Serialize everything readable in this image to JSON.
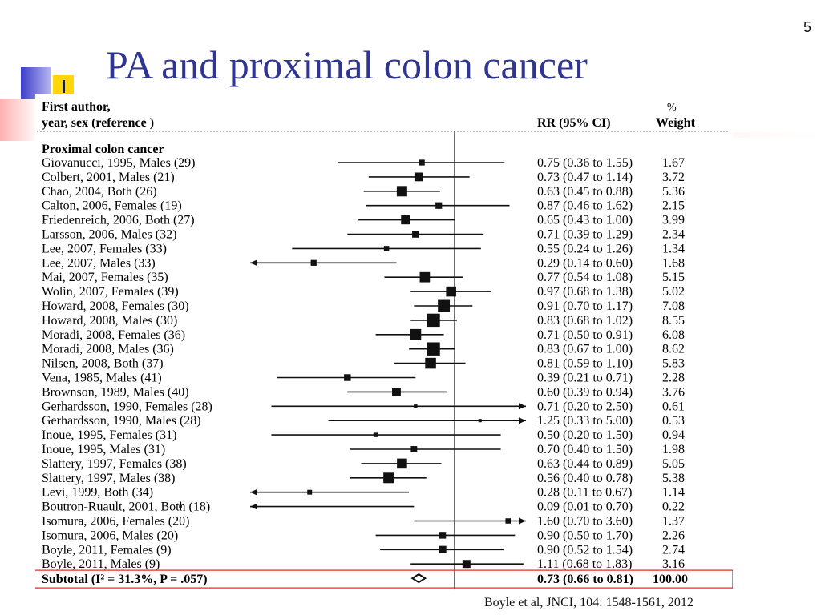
{
  "slide": {
    "number": "5",
    "title": "PA and proximal colon cancer",
    "citation": "Boyle et al, JNCI, 104: 1548-1561, 2012",
    "colors": {
      "title": "#2f3590",
      "highlight_box": "#e02020",
      "deco_blue": "#3c3cc8",
      "deco_yellow": "#ffd60a"
    }
  },
  "chart_data": {
    "type": "forest",
    "header": {
      "study_col_line1": "First author,",
      "study_col_line2": "year, sex (reference )",
      "rr_col": "RR (95% CI)",
      "weight_col_line1": "%",
      "weight_col_line2": "Weight"
    },
    "group_label": "Proximal colon cancer",
    "log_scale": true,
    "reference_line": 1.0,
    "studies": [
      {
        "label": "Giovanucci, 1995, Males (29)",
        "rr": 0.75,
        "lo": 0.36,
        "hi": 1.55,
        "rr_text": "0.75 (0.36 to 1.55)",
        "weight": 1.67
      },
      {
        "label": "Colbert, 2001, Males (21)",
        "rr": 0.73,
        "lo": 0.47,
        "hi": 1.14,
        "rr_text": "0.73 (0.47 to 1.14)",
        "weight": 3.72
      },
      {
        "label": "Chao, 2004, Both (26)",
        "rr": 0.63,
        "lo": 0.45,
        "hi": 0.88,
        "rr_text": "0.63 (0.45 to 0.88)",
        "weight": 5.36
      },
      {
        "label": "Calton, 2006, Females (19)",
        "rr": 0.87,
        "lo": 0.46,
        "hi": 1.62,
        "rr_text": "0.87 (0.46 to 1.62)",
        "weight": 2.15
      },
      {
        "label": "Friedenreich, 2006, Both (27)",
        "rr": 0.65,
        "lo": 0.43,
        "hi": 1.0,
        "rr_text": "0.65 (0.43 to 1.00)",
        "weight": 3.99
      },
      {
        "label": "Larsson, 2006, Males (32)",
        "rr": 0.71,
        "lo": 0.39,
        "hi": 1.29,
        "rr_text": "0.71 (0.39 to 1.29)",
        "weight": 2.34
      },
      {
        "label": "Lee, 2007, Females (33)",
        "rr": 0.55,
        "lo": 0.24,
        "hi": 1.26,
        "rr_text": "0.55 (0.24 to 1.26)",
        "weight": 1.34
      },
      {
        "label": "Lee, 2007, Males (33)",
        "rr": 0.29,
        "lo": 0.14,
        "hi": 0.6,
        "rr_text": "0.29 (0.14 to 0.60)",
        "weight": 1.68
      },
      {
        "label": "Mai, 2007, Females (35)",
        "rr": 0.77,
        "lo": 0.54,
        "hi": 1.08,
        "rr_text": "0.77 (0.54 to 1.08)",
        "weight": 5.15
      },
      {
        "label": "Wolin, 2007, Females (39)",
        "rr": 0.97,
        "lo": 0.68,
        "hi": 1.38,
        "rr_text": "0.97 (0.68 to 1.38)",
        "weight": 5.02
      },
      {
        "label": "Howard, 2008, Females (30)",
        "rr": 0.91,
        "lo": 0.7,
        "hi": 1.17,
        "rr_text": "0.91 (0.70 to 1.17)",
        "weight": 7.08
      },
      {
        "label": "Howard, 2008, Males (30)",
        "rr": 0.83,
        "lo": 0.68,
        "hi": 1.02,
        "rr_text": "0.83 (0.68 to 1.02)",
        "weight": 8.55
      },
      {
        "label": "Moradi, 2008, Females (36)",
        "rr": 0.71,
        "lo": 0.5,
        "hi": 0.91,
        "rr_text": "0.71 (0.50 to 0.91)",
        "weight": 6.08
      },
      {
        "label": "Moradi, 2008, Males (36)",
        "rr": 0.83,
        "lo": 0.67,
        "hi": 1.0,
        "rr_text": "0.83 (0.67 to 1.00)",
        "weight": 8.62
      },
      {
        "label": "Nilsen, 2008, Both (37)",
        "rr": 0.81,
        "lo": 0.59,
        "hi": 1.1,
        "rr_text": "0.81 (0.59 to 1.10)",
        "weight": 5.83
      },
      {
        "label": "Vena, 1985, Males (41)",
        "rr": 0.39,
        "lo": 0.21,
        "hi": 0.71,
        "rr_text": "0.39 (0.21 to 0.71)",
        "weight": 2.28
      },
      {
        "label": "Brownson, 1989, Males (40)",
        "rr": 0.6,
        "lo": 0.39,
        "hi": 0.94,
        "rr_text": "0.60 (0.39 to 0.94)",
        "weight": 3.76
      },
      {
        "label": "Gerhardsson, 1990, Females (28)",
        "rr": 0.71,
        "lo": 0.2,
        "hi": 2.5,
        "rr_text": "0.71 (0.20 to 2.50)",
        "weight": 0.61
      },
      {
        "label": "Gerhardsson, 1990, Males (28)",
        "rr": 1.25,
        "lo": 0.33,
        "hi": 5.0,
        "rr_text": "1.25 (0.33 to 5.00)",
        "weight": 0.53
      },
      {
        "label": "Inoue, 1995, Females (31)",
        "rr": 0.5,
        "lo": 0.2,
        "hi": 1.5,
        "rr_text": "0.50 (0.20 to 1.50)",
        "weight": 0.94
      },
      {
        "label": "Inoue, 1995, Males (31)",
        "rr": 0.7,
        "lo": 0.4,
        "hi": 1.5,
        "rr_text": "0.70 (0.40 to 1.50)",
        "weight": 1.98
      },
      {
        "label": "Slattery, 1997, Females (38)",
        "rr": 0.63,
        "lo": 0.44,
        "hi": 0.89,
        "rr_text": "0.63 (0.44 to 0.89)",
        "weight": 5.05
      },
      {
        "label": "Slattery, 1997, Males (38)",
        "rr": 0.56,
        "lo": 0.4,
        "hi": 0.78,
        "rr_text": "0.56 (0.40 to 0.78)",
        "weight": 5.38
      },
      {
        "label": "Levi, 1999, Both (34)",
        "rr": 0.28,
        "lo": 0.11,
        "hi": 0.67,
        "rr_text": "0.28 (0.11 to 0.67)",
        "weight": 1.14
      },
      {
        "label": "Boutron-Ruault, 2001, Both (18)",
        "rr": 0.09,
        "lo": 0.01,
        "hi": 0.7,
        "rr_text": "0.09 (0.01 to 0.70)",
        "weight": 0.22
      },
      {
        "label": "Isomura, 2006, Females (20)",
        "rr": 1.6,
        "lo": 0.7,
        "hi": 3.6,
        "rr_text": "1.60 (0.70 to 3.60)",
        "weight": 1.37
      },
      {
        "label": "Isomura, 2006, Males (20)",
        "rr": 0.9,
        "lo": 0.5,
        "hi": 1.7,
        "rr_text": "0.90 (0.50 to 1.70)",
        "weight": 2.26
      },
      {
        "label": "Boyle, 2011, Females (9)",
        "rr": 0.9,
        "lo": 0.52,
        "hi": 1.54,
        "rr_text": "0.90 (0.52 to 1.54)",
        "weight": 2.74
      },
      {
        "label": "Boyle, 2011, Males (9)",
        "rr": 1.11,
        "lo": 0.68,
        "hi": 1.83,
        "rr_text": "1.11 (0.68 to 1.83)",
        "weight": 3.16
      }
    ],
    "subtotal": {
      "label": "Subtotal  (I² = 31.3%, P = .057)",
      "rr": 0.73,
      "lo": 0.66,
      "hi": 0.81,
      "rr_text": "0.73 (0.66 to 0.81)",
      "weight": "100.00"
    }
  }
}
